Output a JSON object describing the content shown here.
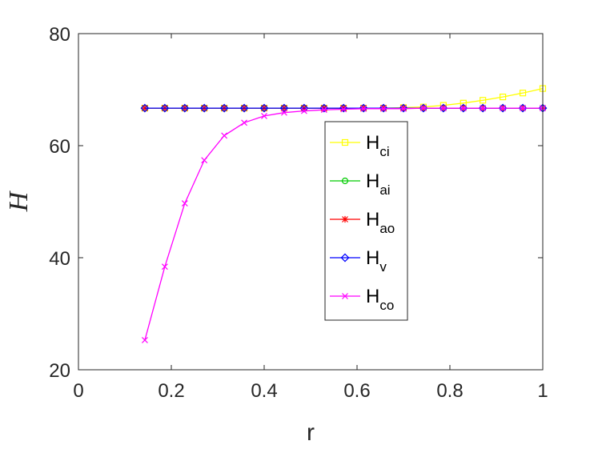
{
  "chart_data": {
    "type": "line",
    "xlabel": "r",
    "ylabel": "H",
    "xlim": [
      0,
      1
    ],
    "ylim": [
      20,
      80
    ],
    "xticks": [
      0,
      0.2,
      0.4,
      0.6,
      0.8,
      1
    ],
    "yticks": [
      20,
      40,
      60,
      80
    ],
    "xtick_labels": [
      "0",
      "0.2",
      "0.4",
      "0.6",
      "0.8",
      "1"
    ],
    "ytick_labels": [
      "20",
      "40",
      "60",
      "80"
    ],
    "grid": false,
    "legend_position": "center",
    "x": [
      0.143,
      0.186,
      0.229,
      0.271,
      0.314,
      0.357,
      0.4,
      0.443,
      0.486,
      0.529,
      0.571,
      0.614,
      0.657,
      0.7,
      0.743,
      0.786,
      0.829,
      0.871,
      0.914,
      0.957,
      1.0
    ],
    "series": [
      {
        "name": "H",
        "sub": "ci",
        "color": "#ffff00",
        "marker": "square",
        "values": [
          66.7,
          66.7,
          66.7,
          66.7,
          66.7,
          66.7,
          66.7,
          66.7,
          66.7,
          66.7,
          66.7,
          66.7,
          66.7,
          66.8,
          66.9,
          67.2,
          67.6,
          68.1,
          68.7,
          69.4,
          70.2
        ]
      },
      {
        "name": "H",
        "sub": "ai",
        "color": "#00cc00",
        "marker": "circle",
        "values": [
          66.7,
          66.7,
          66.7,
          66.7,
          66.7,
          66.7,
          66.7,
          66.7,
          66.7,
          66.7,
          66.7,
          66.7,
          66.7,
          66.7,
          66.7,
          66.7,
          66.7,
          66.7,
          66.7,
          66.7,
          66.7
        ]
      },
      {
        "name": "H",
        "sub": "ao",
        "color": "#ff0000",
        "marker": "asterisk",
        "values": [
          66.7,
          66.7,
          66.7,
          66.7,
          66.7,
          66.7,
          66.7,
          66.7,
          66.7,
          66.7,
          66.7,
          66.7,
          66.7,
          66.7,
          66.7,
          66.7,
          66.7,
          66.7,
          66.7,
          66.7,
          66.7
        ]
      },
      {
        "name": "H",
        "sub": "v",
        "color": "#0000ff",
        "marker": "diamond",
        "values": [
          66.7,
          66.7,
          66.7,
          66.7,
          66.7,
          66.7,
          66.7,
          66.7,
          66.7,
          66.7,
          66.7,
          66.7,
          66.7,
          66.7,
          66.7,
          66.7,
          66.7,
          66.7,
          66.7,
          66.7,
          66.7
        ]
      },
      {
        "name": "H",
        "sub": "co",
        "color": "#ff00ff",
        "marker": "x",
        "values": [
          25.3,
          38.4,
          49.7,
          57.4,
          61.8,
          64.1,
          65.3,
          65.9,
          66.2,
          66.4,
          66.5,
          66.6,
          66.6,
          66.6,
          66.7,
          66.7,
          66.7,
          66.7,
          66.7,
          66.7,
          66.7
        ]
      }
    ]
  }
}
